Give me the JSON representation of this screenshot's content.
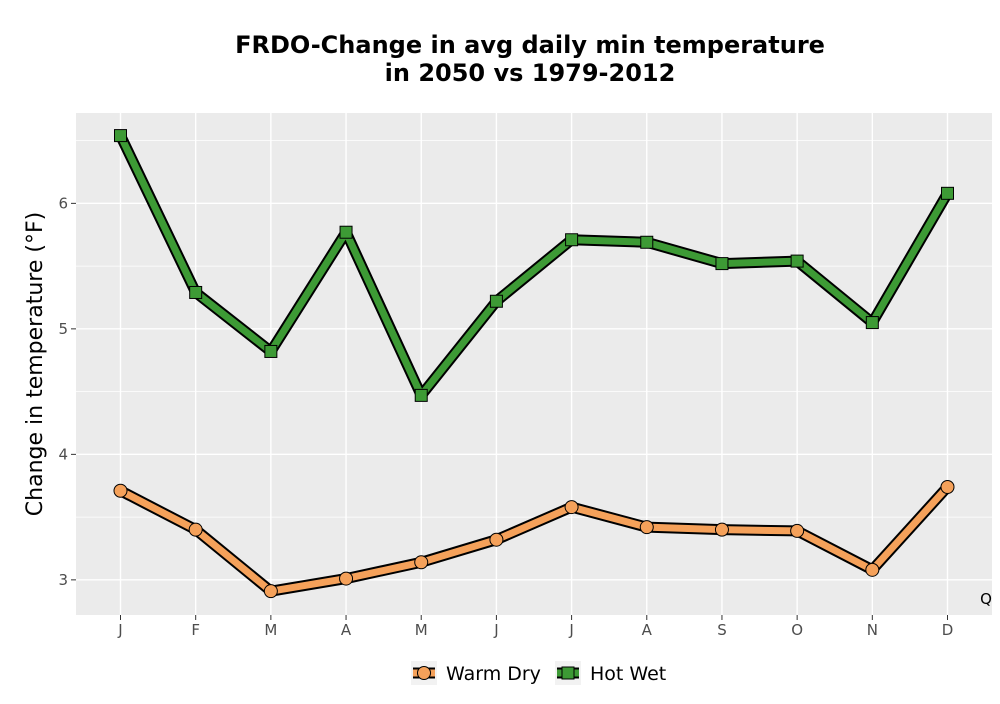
{
  "chart_data": {
    "type": "line",
    "title_line1": "FRDO-Change in avg daily min temperature",
    "title_line2": "in 2050 vs 1979-2012",
    "xlabel": "",
    "ylabel": "Change in temperature (°F)",
    "categories": [
      "J",
      "F",
      "M",
      "A",
      "M",
      "J",
      "J",
      "A",
      "S",
      "O",
      "N",
      "D"
    ],
    "ylim": [
      2.72,
      6.72
    ],
    "yticks": [
      3,
      4,
      5,
      6
    ],
    "grid": true,
    "legend_position": "bottom",
    "corner_label": "Q",
    "series": [
      {
        "name": "Warm Dry",
        "marker": "circle",
        "color": "#f5a15a",
        "values": [
          3.71,
          3.4,
          2.91,
          3.01,
          3.14,
          3.32,
          3.58,
          3.42,
          3.4,
          3.39,
          3.08,
          3.74
        ]
      },
      {
        "name": "Hot Wet",
        "marker": "square",
        "color": "#3d9a35",
        "values": [
          6.54,
          5.29,
          4.82,
          5.77,
          4.47,
          5.22,
          5.71,
          5.69,
          5.52,
          5.54,
          5.05,
          6.08
        ]
      }
    ]
  }
}
